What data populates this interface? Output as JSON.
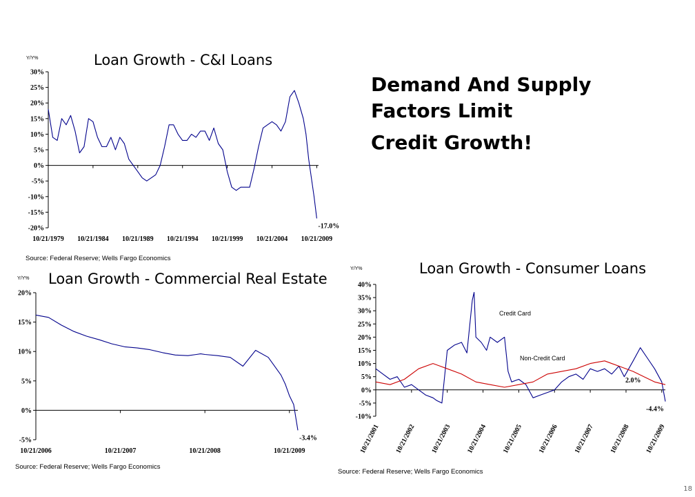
{
  "headline": {
    "line1": "Demand And Supply Factors Limit",
    "line2": "Credit Growth!"
  },
  "page_number": "18",
  "chart_data": [
    {
      "id": "ci",
      "type": "line",
      "title": "Loan Growth - C&I Loans",
      "unit_label": "Y/Y%",
      "source": "Source: Federal Reserve; Wells Fargo Economics",
      "ylim": [
        -20,
        30
      ],
      "yticks": [
        30,
        25,
        20,
        15,
        10,
        5,
        0,
        -5,
        -10,
        -15,
        -20
      ],
      "ytick_format": "%",
      "xlim": [
        1979.8,
        2010.0
      ],
      "xticks": [
        {
          "v": 1979.8,
          "label": "10/21/1979"
        },
        {
          "v": 1984.8,
          "label": "10/21/1984"
        },
        {
          "v": 1989.8,
          "label": "10/21/1989"
        },
        {
          "v": 1994.8,
          "label": "10/21/1994"
        },
        {
          "v": 1999.8,
          "label": "10/21/1999"
        },
        {
          "v": 2004.8,
          "label": "10/21/2004"
        },
        {
          "v": 2009.8,
          "label": "10/21/2009"
        }
      ],
      "grid": false,
      "end_label": "-17.0%",
      "series": [
        {
          "color": "#00008b",
          "x": [
            1979.8,
            1980.3,
            1980.8,
            1981.3,
            1981.8,
            1982.3,
            1982.8,
            1983.3,
            1983.8,
            1984.3,
            1984.8,
            1985.3,
            1985.8,
            1986.3,
            1986.8,
            1987.3,
            1987.8,
            1988.3,
            1988.8,
            1989.3,
            1989.8,
            1990.3,
            1990.8,
            1991.3,
            1991.8,
            1992.3,
            1992.8,
            1993.3,
            1993.8,
            1994.3,
            1994.8,
            1995.3,
            1995.8,
            1996.3,
            1996.8,
            1997.3,
            1997.8,
            1998.3,
            1998.8,
            1999.3,
            1999.8,
            2000.3,
            2000.8,
            2001.3,
            2001.8,
            2002.3,
            2002.8,
            2003.3,
            2003.8,
            2004.3,
            2004.8,
            2005.3,
            2005.8,
            2006.3,
            2006.8,
            2007.3,
            2007.8,
            2008.3,
            2008.6,
            2008.9,
            2009.2,
            2009.5,
            2009.8
          ],
          "y": [
            18,
            9,
            8,
            15,
            13,
            16,
            11,
            4,
            6,
            15,
            14,
            9,
            6,
            6,
            9,
            5,
            9,
            7,
            2,
            0,
            -2,
            -4,
            -5,
            -4,
            -3,
            0,
            6,
            13,
            13,
            10,
            8,
            8,
            10,
            9,
            11,
            11,
            8,
            12,
            7,
            5,
            -2,
            -7,
            -8,
            -7,
            -7,
            -7,
            -1,
            6,
            12,
            13,
            14,
            13,
            11,
            14,
            22,
            24,
            20,
            15,
            10,
            2,
            -4,
            -10,
            -17
          ]
        }
      ]
    },
    {
      "id": "cre",
      "type": "line",
      "title": "Loan Growth - Commercial Real Estate",
      "unit_label": "Y/Y%",
      "source": "Source: Federal Reserve; Wells Fargo Economics",
      "ylim": [
        -5,
        20
      ],
      "yticks": [
        20,
        15,
        10,
        5,
        0,
        -5
      ],
      "ytick_format": "%",
      "xlim": [
        2006.8,
        2009.9
      ],
      "xticks": [
        {
          "v": 2006.8,
          "label": "10/21/2006"
        },
        {
          "v": 2007.8,
          "label": "10/21/2007"
        },
        {
          "v": 2008.8,
          "label": "10/21/2008"
        },
        {
          "v": 2009.8,
          "label": "10/21/2009"
        }
      ],
      "grid": false,
      "end_label": "-3.4%",
      "series": [
        {
          "color": "#00008b",
          "x": [
            2006.8,
            2006.95,
            2007.1,
            2007.25,
            2007.4,
            2007.55,
            2007.7,
            2007.85,
            2008.0,
            2008.15,
            2008.3,
            2008.45,
            2008.6,
            2008.7,
            2008.75,
            2008.8,
            2008.95,
            2009.1,
            2009.25,
            2009.4,
            2009.55,
            2009.7,
            2009.75,
            2009.8,
            2009.85,
            2009.9
          ],
          "y": [
            16.2,
            15.8,
            14.5,
            13.4,
            12.6,
            12,
            11.3,
            10.8,
            10.6,
            10.3,
            9.8,
            9.4,
            9.3,
            9.5,
            9.6,
            9.5,
            9.3,
            9,
            7.5,
            10.2,
            9,
            6,
            4.5,
            2.5,
            1,
            -3.4
          ]
        }
      ]
    },
    {
      "id": "consumer",
      "type": "line",
      "title": "Loan Growth - Consumer Loans",
      "unit_label": "Y/Y%",
      "source": "Source: Federal Reserve; Wells Fargo Economics",
      "ylim": [
        -10,
        40
      ],
      "yticks": [
        40,
        35,
        30,
        25,
        20,
        15,
        10,
        5,
        0,
        -5,
        -10
      ],
      "ytick_format": "%",
      "xlim": [
        2001.8,
        2009.9
      ],
      "xticks": [
        {
          "v": 2001.8,
          "label": "10/21/2001"
        },
        {
          "v": 2002.8,
          "label": "10/21/2002"
        },
        {
          "v": 2003.8,
          "label": "10/21/2003"
        },
        {
          "v": 2004.8,
          "label": "10/21/2004"
        },
        {
          "v": 2005.8,
          "label": "10/21/2005"
        },
        {
          "v": 2006.8,
          "label": "10/21/2006"
        },
        {
          "v": 2007.8,
          "label": "10/21/2007"
        },
        {
          "v": 2008.8,
          "label": "10/21/2008"
        },
        {
          "v": 2009.8,
          "label": "10/21/2009"
        }
      ],
      "grid": false,
      "series": [
        {
          "name": "Credit Card",
          "color": "#00008b",
          "end_label": "-4.4%",
          "x": [
            2001.8,
            2002.0,
            2002.2,
            2002.4,
            2002.6,
            2002.8,
            2003.0,
            2003.2,
            2003.4,
            2003.5,
            2003.65,
            2003.8,
            2004.0,
            2004.2,
            2004.35,
            2004.5,
            2004.55,
            2004.6,
            2004.75,
            2004.9,
            2005.0,
            2005.2,
            2005.4,
            2005.5,
            2005.6,
            2005.8,
            2006.0,
            2006.2,
            2006.4,
            2006.6,
            2006.8,
            2007.0,
            2007.2,
            2007.4,
            2007.6,
            2007.8,
            2008.0,
            2008.2,
            2008.4,
            2008.6,
            2008.75,
            2009.0,
            2009.2,
            2009.4,
            2009.6,
            2009.8,
            2009.9
          ],
          "y": [
            8,
            6,
            4,
            5,
            1,
            2,
            0,
            -2,
            -3,
            -4,
            -5,
            15,
            17,
            18,
            14,
            34,
            37,
            20,
            18,
            15,
            20,
            18,
            20,
            7,
            3,
            4,
            2,
            -3,
            -2,
            -1,
            0,
            3,
            5,
            6,
            4,
            8,
            7,
            8,
            6,
            9,
            5,
            11,
            16,
            12,
            8,
            3,
            -4.4
          ]
        },
        {
          "name": "Non-Credit Card",
          "color": "#cc0000",
          "end_label": "2.0%",
          "x": [
            2001.8,
            2002.2,
            2002.6,
            2003.0,
            2003.4,
            2003.8,
            2004.2,
            2004.6,
            2005.0,
            2005.4,
            2005.8,
            2006.2,
            2006.6,
            2007.0,
            2007.4,
            2007.8,
            2008.2,
            2008.6,
            2009.0,
            2009.3,
            2009.6,
            2009.9
          ],
          "y": [
            3,
            2,
            4,
            8,
            10,
            8,
            6,
            3,
            2,
            1,
            2,
            3,
            6,
            7,
            8,
            10,
            11,
            9,
            7,
            5,
            3,
            2
          ]
        }
      ]
    }
  ]
}
